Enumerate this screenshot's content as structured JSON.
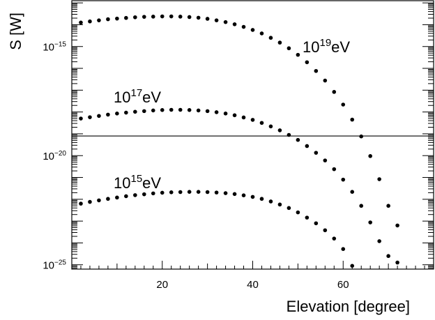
{
  "chart_data": {
    "type": "scatter",
    "xlabel": "Elevation [degree]",
    "ylabel": "S [W]",
    "x_ticks": [
      20,
      40,
      60
    ],
    "y_ticks": [
      {
        "exp": -25,
        "base": "10",
        "sup": "−25"
      },
      {
        "exp": -20,
        "base": "10",
        "sup": "−20"
      },
      {
        "exp": -15,
        "base": "10",
        "sup": "−15"
      }
    ],
    "xlim": [
      0,
      80
    ],
    "ylim_log10": [
      -25.2,
      -12.9
    ],
    "y_scale": "log",
    "reference_line_log10": -19.1,
    "series": [
      {
        "name_base": "10",
        "name_sup": "19",
        "name_unit": "eV",
        "x": [
          2,
          4,
          6,
          8,
          10,
          12,
          14,
          16,
          18,
          20,
          22,
          24,
          26,
          28,
          30,
          32,
          34,
          36,
          38,
          40,
          42,
          44,
          46,
          48,
          50,
          52,
          54,
          56,
          58,
          60,
          62,
          64,
          66,
          68,
          70,
          72
        ],
        "log10_y": [
          -13.9,
          -13.85,
          -13.8,
          -13.75,
          -13.72,
          -13.69,
          -13.66,
          -13.64,
          -13.63,
          -13.62,
          -13.62,
          -13.63,
          -13.65,
          -13.68,
          -13.73,
          -13.8,
          -13.88,
          -13.98,
          -14.1,
          -14.24,
          -14.4,
          -14.6,
          -14.82,
          -15.08,
          -15.38,
          -15.72,
          -16.12,
          -16.56,
          -17.08,
          -17.66,
          -18.35,
          -19.12,
          -20.02,
          -21.08,
          -22.3,
          -23.2
        ]
      },
      {
        "name_base": "10",
        "name_sup": "17",
        "name_unit": "eV",
        "x": [
          2,
          4,
          6,
          8,
          10,
          12,
          14,
          16,
          18,
          20,
          22,
          24,
          26,
          28,
          30,
          32,
          34,
          36,
          38,
          40,
          42,
          44,
          46,
          48,
          50,
          52,
          54,
          56,
          58,
          60,
          62,
          64,
          66,
          68,
          70,
          72
        ],
        "log10_y": [
          -18.3,
          -18.24,
          -18.18,
          -18.12,
          -18.07,
          -18.03,
          -17.99,
          -17.96,
          -17.93,
          -17.91,
          -17.9,
          -17.9,
          -17.91,
          -17.93,
          -17.96,
          -18.01,
          -18.07,
          -18.15,
          -18.25,
          -18.36,
          -18.5,
          -18.66,
          -18.84,
          -19.05,
          -19.28,
          -19.56,
          -19.87,
          -20.22,
          -20.62,
          -21.1,
          -21.66,
          -22.3,
          -23.06,
          -23.92,
          -24.6,
          -24.9
        ]
      },
      {
        "name_base": "10",
        "name_sup": "15",
        "name_unit": "eV",
        "x": [
          2,
          4,
          6,
          8,
          10,
          12,
          14,
          16,
          18,
          20,
          22,
          24,
          26,
          28,
          30,
          32,
          34,
          36,
          38,
          40,
          42,
          44,
          46,
          48,
          50,
          52,
          54,
          56,
          58,
          60,
          62
        ],
        "log10_y": [
          -22.2,
          -22.12,
          -22.05,
          -21.98,
          -21.92,
          -21.86,
          -21.81,
          -21.77,
          -21.73,
          -21.7,
          -21.68,
          -21.67,
          -21.66,
          -21.66,
          -21.67,
          -21.69,
          -21.72,
          -21.76,
          -21.82,
          -21.89,
          -21.98,
          -22.1,
          -22.24,
          -22.4,
          -22.6,
          -22.84,
          -23.1,
          -23.42,
          -23.8,
          -24.28,
          -25.05
        ]
      }
    ]
  }
}
